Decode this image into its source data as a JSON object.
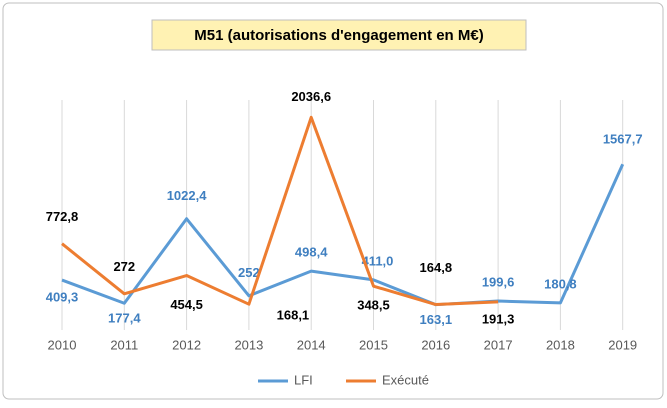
{
  "chart_data": {
    "type": "line",
    "title": "M51 (autorisations d'engagement en M€)",
    "categories": [
      "2010",
      "2011",
      "2012",
      "2013",
      "2014",
      "2015",
      "2016",
      "2017",
      "2018",
      "2019"
    ],
    "series": [
      {
        "name": "LFI",
        "color": "#5b9bd5",
        "values": [
          409.3,
          177.4,
          1022.4,
          252,
          498.4,
          411.0,
          163.1,
          199.6,
          180.8,
          1567.7
        ],
        "value_labels": [
          "409,3",
          "177,4",
          "1022,4",
          "252",
          "498,4",
          "411,0",
          "163,1",
          "199,6",
          "180,8",
          "1567,7"
        ]
      },
      {
        "name": "Exécuté",
        "color": "#ed7d31",
        "values": [
          772.8,
          272,
          454.5,
          168.1,
          2036.6,
          348.5,
          164.8,
          191.3,
          null,
          null
        ],
        "value_labels": [
          "772,8",
          "272",
          "454,5",
          "168,1",
          "2036,6",
          "348,5",
          "164,8",
          "191,3",
          null,
          null
        ]
      }
    ],
    "ylim": [
      0,
      2200
    ],
    "grid": true,
    "legend": "bottom"
  }
}
